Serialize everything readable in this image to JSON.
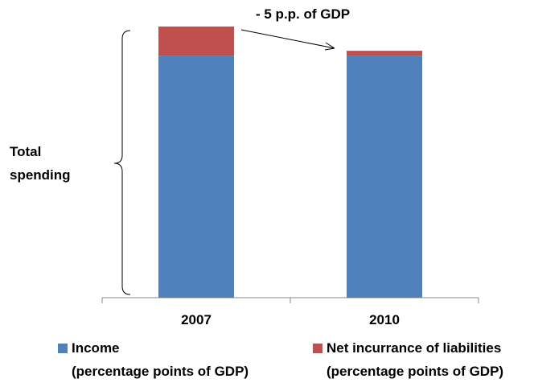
{
  "chart_data": {
    "type": "stacked_bar",
    "annotations": [
      "- 5 p.p. of GDP",
      "Total\nspending"
    ],
    "categories": [
      "2007",
      "2010"
    ],
    "series": [
      {
        "name": "Income\n(percentage points of GDP)",
        "color": "#4f81bd",
        "values": [
          50,
          50
        ]
      },
      {
        "name": "Net incurrance of liabilities\n(percentage points of GDP)",
        "color": "#c0504d",
        "values": [
          6,
          1
        ]
      }
    ],
    "ylim": [
      0,
      56
    ]
  }
}
